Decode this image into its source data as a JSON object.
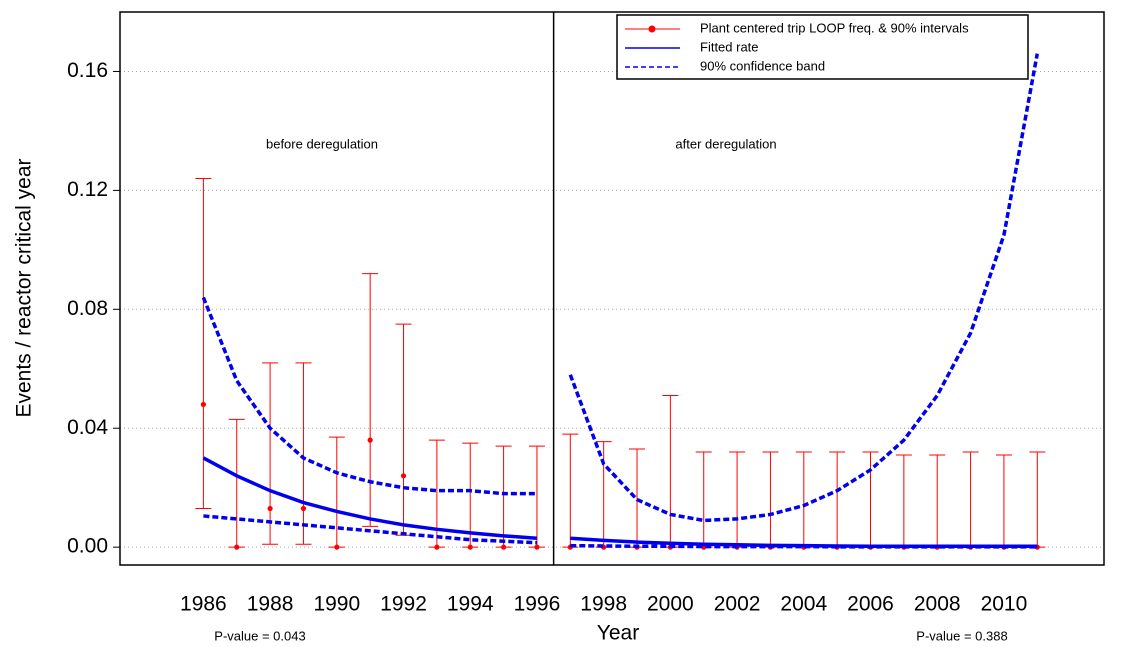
{
  "chart_data": {
    "type": "errorbar",
    "x_label": "Year",
    "y_label": "Events / reactor critical year",
    "xlim": [
      1983.5,
      2013.0
    ],
    "ylim": [
      -0.006,
      0.18
    ],
    "xticks": [
      1986,
      1988,
      1990,
      1992,
      1994,
      1996,
      1998,
      2000,
      2002,
      2004,
      2006,
      2008,
      2010
    ],
    "yticks": [
      {
        "value": 0,
        "label": "0.00"
      },
      {
        "value": 0.04,
        "label": "0.04"
      },
      {
        "value": 0.08,
        "label": "0.08"
      },
      {
        "value": 0.12,
        "label": "0.12"
      },
      {
        "value": 0.16,
        "label": "0.16"
      }
    ],
    "grid": true,
    "divider_x": 1996.5,
    "legend_position": "upper right",
    "series": [
      {
        "name": "Plant centered trip LOOP freq. & 90% intervals",
        "color": "#ff0000",
        "x": [
          1986,
          1987,
          1988,
          1989,
          1990,
          1991,
          1992,
          1993,
          1994,
          1995,
          1996,
          1997,
          1998,
          1999,
          2000,
          2001,
          2002,
          2003,
          2004,
          2005,
          2006,
          2007,
          2008,
          2009,
          2010,
          2011
        ],
        "values": [
          0.048,
          0,
          0.013,
          0.013,
          0,
          0.036,
          0.024,
          0,
          0,
          0,
          0,
          0,
          0,
          0,
          0,
          0,
          0,
          0,
          0,
          0,
          0,
          0,
          0,
          0,
          0,
          0
        ],
        "lower": [
          0.013,
          0,
          0.001,
          0.001,
          0,
          0.007,
          0.004,
          0,
          0,
          0,
          0,
          0,
          0,
          0,
          0,
          0,
          0,
          0,
          0,
          0,
          0,
          0,
          0,
          0,
          0,
          0
        ],
        "upper": [
          0.124,
          0.043,
          0.062,
          0.062,
          0.037,
          0.092,
          0.075,
          0.036,
          0.035,
          0.034,
          0.034,
          0.038,
          0.0355,
          0.033,
          0.051,
          0.032,
          0.032,
          0.032,
          0.032,
          0.032,
          0.032,
          0.031,
          0.031,
          0.032,
          0.031,
          0.032
        ]
      },
      {
        "name": "Fitted rate",
        "color": "#0000ee"
      },
      {
        "name": "90% confidence band",
        "color": "#0000ee"
      }
    ],
    "periods": [
      {
        "label": "before deregulation",
        "p_value": "P-value = 0.043",
        "x": [
          1986,
          1987,
          1988,
          1989,
          1990,
          1991,
          1992,
          1993,
          1994,
          1995,
          1996
        ],
        "fit": [
          0.03,
          0.024,
          0.019,
          0.015,
          0.012,
          0.0095,
          0.0075,
          0.006,
          0.0048,
          0.0038,
          0.003
        ],
        "band_upper": [
          0.084,
          0.056,
          0.04,
          0.03,
          0.025,
          0.022,
          0.02,
          0.019,
          0.019,
          0.018,
          0.018
        ],
        "band_lower": [
          0.0105,
          0.0095,
          0.0085,
          0.0075,
          0.0065,
          0.0055,
          0.0045,
          0.0035,
          0.0025,
          0.002,
          0.0015
        ]
      },
      {
        "label": "after deregulation",
        "p_value": "P-value = 0.388",
        "x": [
          1997,
          1998,
          1999,
          2000,
          2001,
          2002,
          2003,
          2004,
          2005,
          2006,
          2007,
          2008,
          2009,
          2010,
          2011
        ],
        "fit": [
          0.003,
          0.0023,
          0.0017,
          0.0013,
          0.001,
          0.0008,
          0.0006,
          0.0005,
          0.0004,
          0.0003,
          0.0003,
          0.0003,
          0.0003,
          0.0003,
          0.0003
        ],
        "band_upper": [
          0.058,
          0.028,
          0.016,
          0.011,
          0.009,
          0.0095,
          0.011,
          0.014,
          0.019,
          0.026,
          0.036,
          0.051,
          0.072,
          0.105,
          0.166
        ],
        "band_lower": [
          0.0005,
          0.0004,
          0.0003,
          0.0003,
          0.0002,
          0.0002,
          0.0002,
          0.0002,
          0.0001,
          0.0001,
          0.0001,
          0.0001,
          0.0001,
          0.0001,
          0.0001
        ]
      }
    ]
  }
}
